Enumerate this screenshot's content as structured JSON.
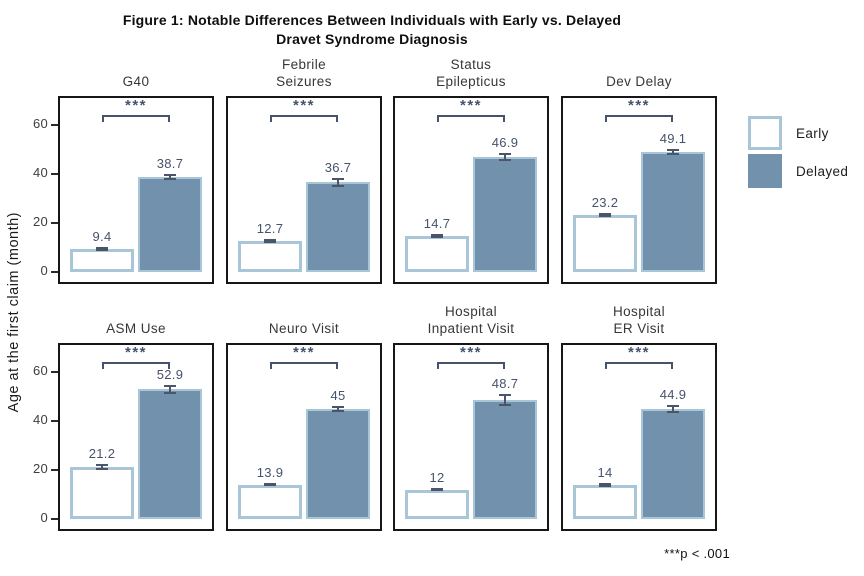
{
  "figure": {
    "title_lines": [
      "Figure 1: Notable Differences Between Individuals with Early vs. Delayed",
      "Dravet Syndrome Diagnosis"
    ],
    "footnote": "***p < .001"
  },
  "legend": {
    "items": [
      {
        "label": "Early",
        "fill": "#ffffff",
        "border": "#a9c5d8"
      },
      {
        "label": "Delayed",
        "fill": "#7191ad",
        "border": "#7191ad"
      }
    ]
  },
  "colors": {
    "early_fill": "#ffffff",
    "early_border": "#a9c5d8",
    "delayed_fill": "#7191ad",
    "delayed_border": "#a9c5d8",
    "error_bar": "#4b5468",
    "annotation": "#45536c",
    "panel_border": "#161616",
    "tick": "#2b2b2b"
  },
  "chart_data": {
    "type": "bar",
    "title": "Figure 1: Notable Differences Between Individuals with Early vs. Delayed Dravet Syndrome Diagnosis",
    "ylabel": "Age at the first claim (month)",
    "yticks": [
      0,
      20,
      40,
      60
    ],
    "ylim": [
      0,
      72
    ],
    "grid": false,
    "legend_position": "right",
    "series_names": [
      "Early",
      "Delayed"
    ],
    "significance_note": "***p < .001",
    "panels": [
      {
        "title_lines": [
          "G40"
        ],
        "early": 9.4,
        "delayed": 38.7,
        "early_err": 0.7,
        "delayed_err": 1.2,
        "significance": "***"
      },
      {
        "title_lines": [
          "Febrile",
          "Seizures"
        ],
        "early": 12.7,
        "delayed": 36.7,
        "early_err": 0.8,
        "delayed_err": 1.8,
        "significance": "***"
      },
      {
        "title_lines": [
          "Status",
          "Epilepticus"
        ],
        "early": 14.7,
        "delayed": 46.9,
        "early_err": 0.8,
        "delayed_err": 1.5,
        "significance": "***"
      },
      {
        "title_lines": [
          "Dev Delay"
        ],
        "early": 23.2,
        "delayed": 49.1,
        "early_err": 0.8,
        "delayed_err": 1.2,
        "significance": "***"
      },
      {
        "title_lines": [
          "ASM Use"
        ],
        "early": 21.2,
        "delayed": 52.9,
        "early_err": 1.2,
        "delayed_err": 2.0,
        "significance": "***"
      },
      {
        "title_lines": [
          "Neuro Visit"
        ],
        "early": 13.9,
        "delayed": 45,
        "early_err": 0.6,
        "delayed_err": 1.3,
        "significance": "***"
      },
      {
        "title_lines": [
          "Hospital",
          "Inpatient Visit"
        ],
        "early": 12,
        "delayed": 48.7,
        "early_err": 0.7,
        "delayed_err": 2.4,
        "significance": "***"
      },
      {
        "title_lines": [
          "Hospital",
          "ER Visit"
        ],
        "early": 14,
        "delayed": 44.9,
        "early_err": 0.9,
        "delayed_err": 1.5,
        "significance": "***"
      }
    ]
  }
}
